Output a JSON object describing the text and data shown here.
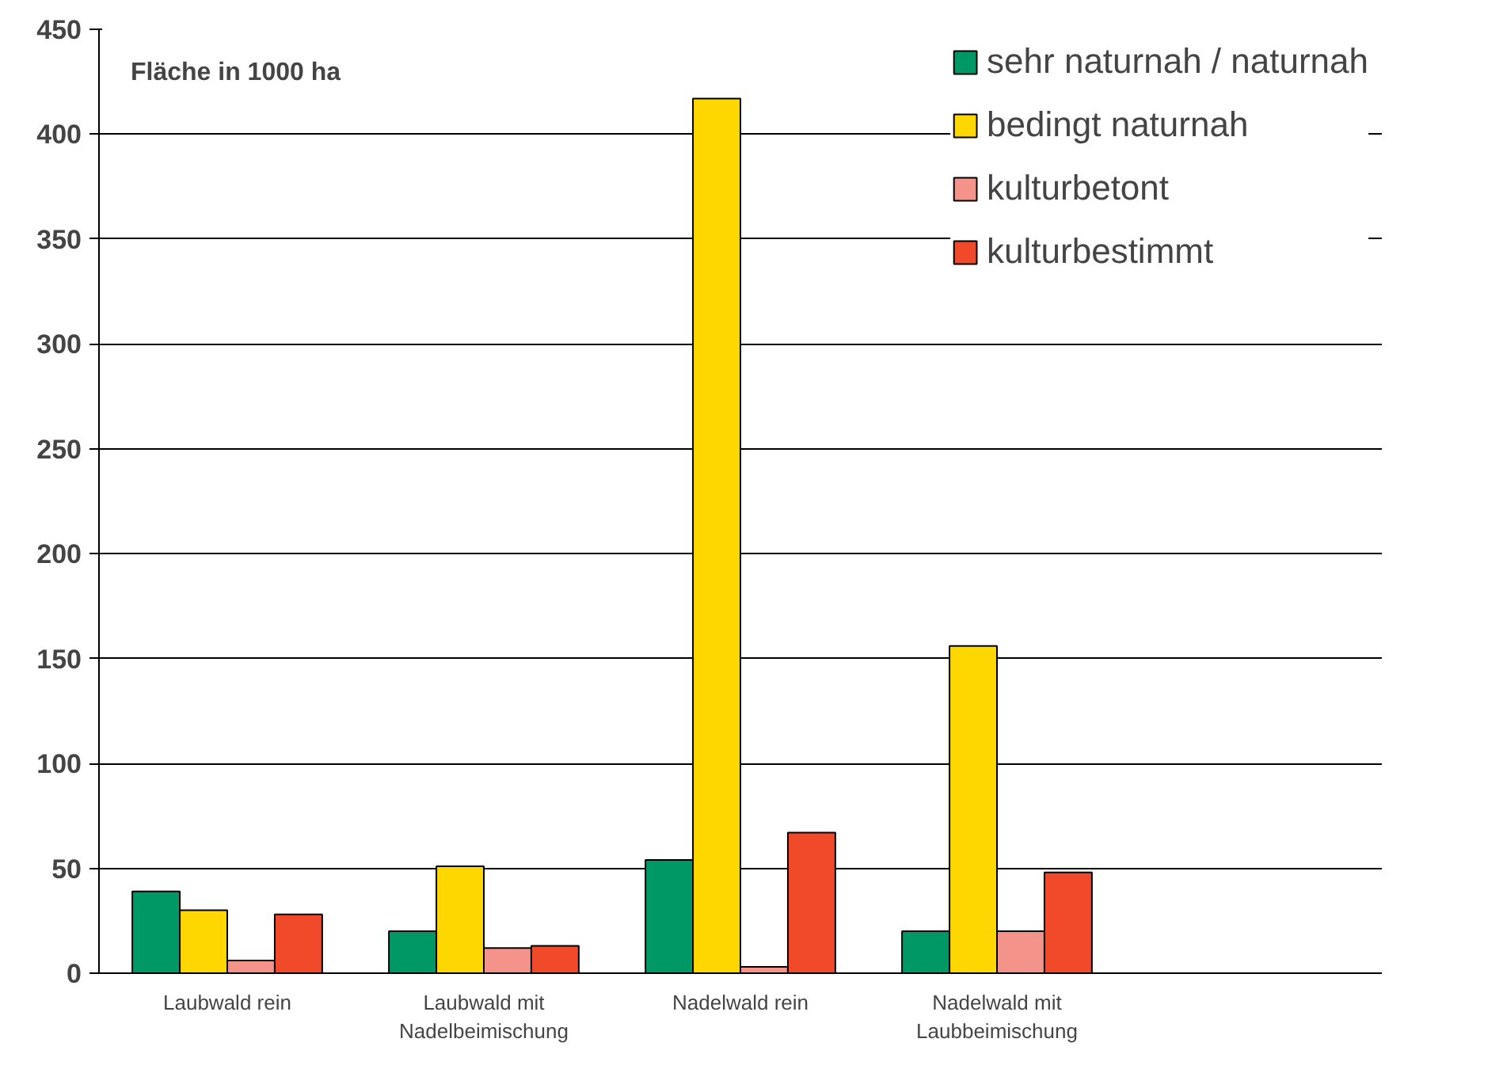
{
  "chart_data": {
    "type": "bar",
    "annotations": [
      "Fläche in 1000 ha"
    ],
    "categories": [
      "Laubwald rein",
      "Laubwald mit\nNadelbeimischung",
      "Nadelwald rein",
      "Nadelwald mit\nLaubbeimischung",
      null
    ],
    "series": [
      {
        "name": "sehr naturnah / naturnah",
        "color": "#009966",
        "values": [
          39,
          20,
          54,
          20,
          null
        ]
      },
      {
        "name": "bedingt naturnah",
        "color": "#ffd700",
        "values": [
          30,
          51,
          417,
          156,
          null
        ]
      },
      {
        "name": "kulturbetont",
        "color": "#f4938a",
        "values": [
          6,
          12,
          3,
          20,
          null
        ]
      },
      {
        "name": "kulturbestimmt",
        "color": "#f04a2a",
        "values": [
          28,
          13,
          67,
          48,
          null
        ]
      }
    ],
    "ylim": [
      0,
      450
    ],
    "yticks": [
      0,
      50,
      100,
      150,
      200,
      250,
      300,
      350,
      400,
      450
    ],
    "grid": "y",
    "legend": "top right"
  }
}
